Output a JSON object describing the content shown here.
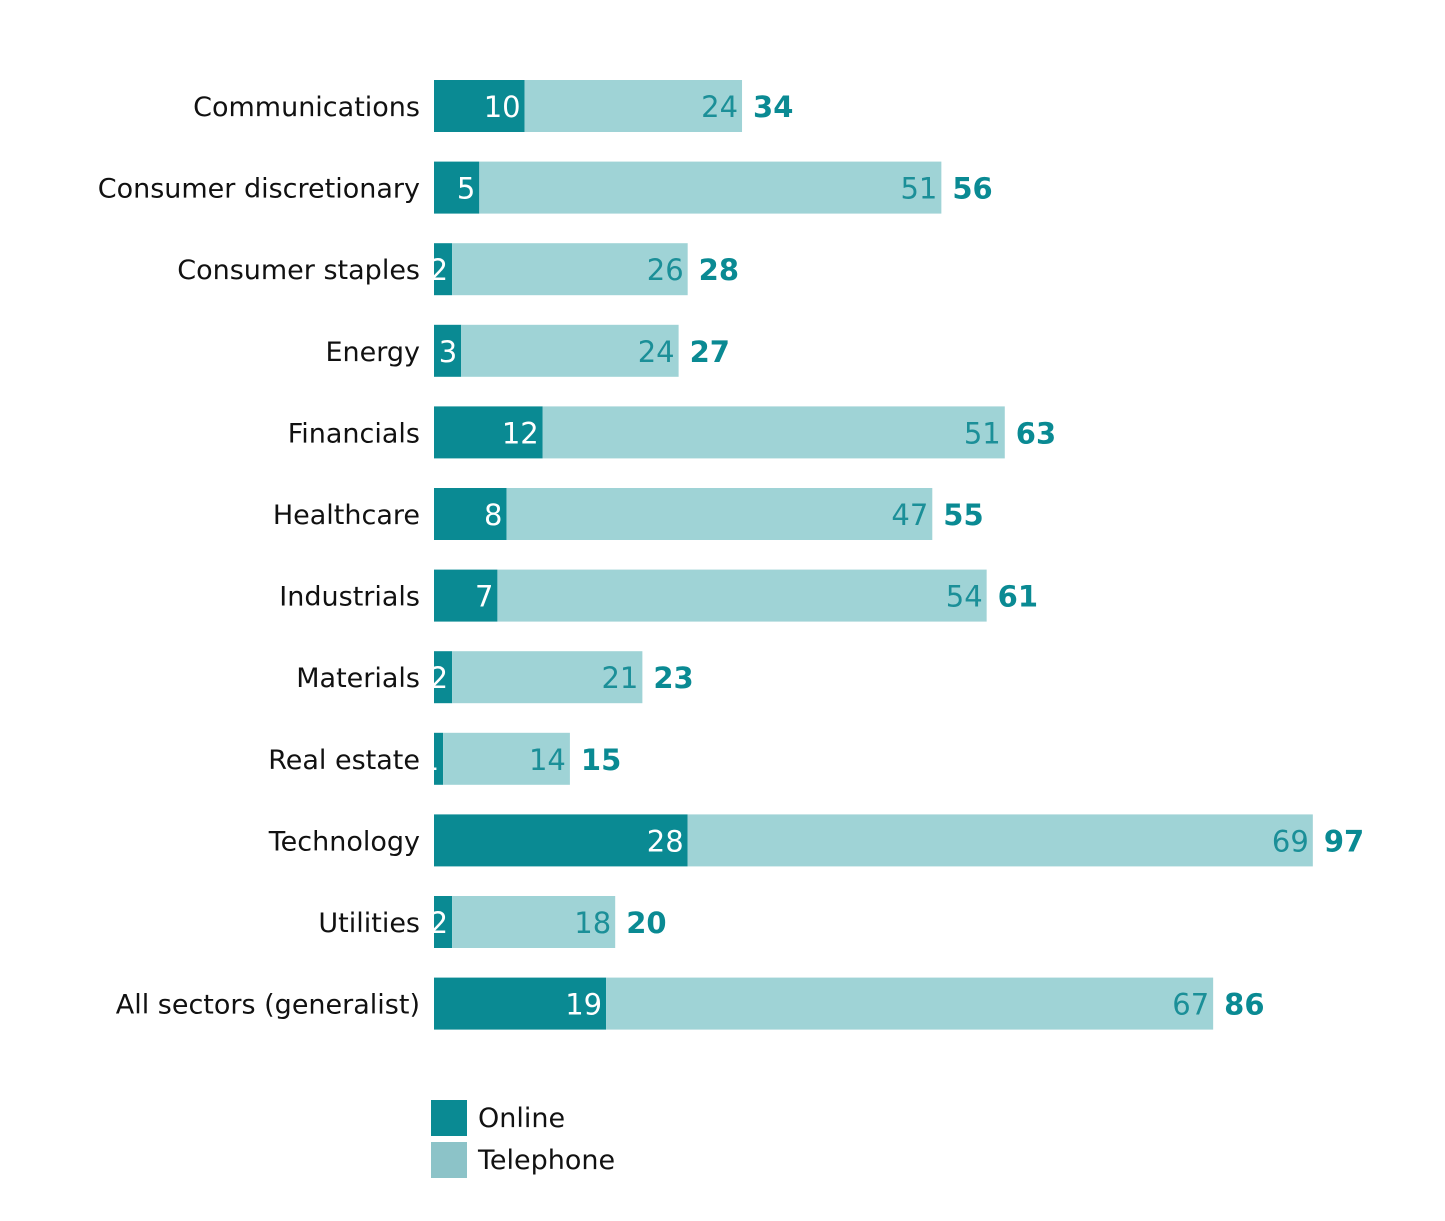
{
  "chart_data": {
    "type": "bar",
    "orientation": "horizontal",
    "stacked": true,
    "categories": [
      "Communications",
      "Consumer discretionary",
      "Consumer staples",
      "Energy",
      "Financials",
      "Healthcare",
      "Industrials",
      "Materials",
      "Real estate",
      "Technology",
      "Utilities",
      "All sectors (generalist)"
    ],
    "series": [
      {
        "name": "Online",
        "values": [
          10,
          5,
          2,
          3,
          12,
          8,
          7,
          2,
          1,
          28,
          2,
          19
        ],
        "color": "#0a8a93",
        "label_color": "#ffffff"
      },
      {
        "name": "Telephone",
        "values": [
          24,
          51,
          26,
          24,
          51,
          47,
          54,
          21,
          14,
          69,
          18,
          67
        ],
        "color": "#9fd3d6",
        "label_color": "#1b8f98"
      }
    ],
    "totals": [
      34,
      56,
      28,
      27,
      63,
      55,
      61,
      23,
      15,
      97,
      20,
      86
    ],
    "total_color": "#0a8a93",
    "xlim": [
      0,
      97
    ],
    "grid": false,
    "legend_position": "bottom-left"
  },
  "legend": {
    "items": [
      {
        "label": "Online",
        "color": "#0a8a93"
      },
      {
        "label": "Telephone",
        "color": "#8cc3c8"
      }
    ]
  }
}
